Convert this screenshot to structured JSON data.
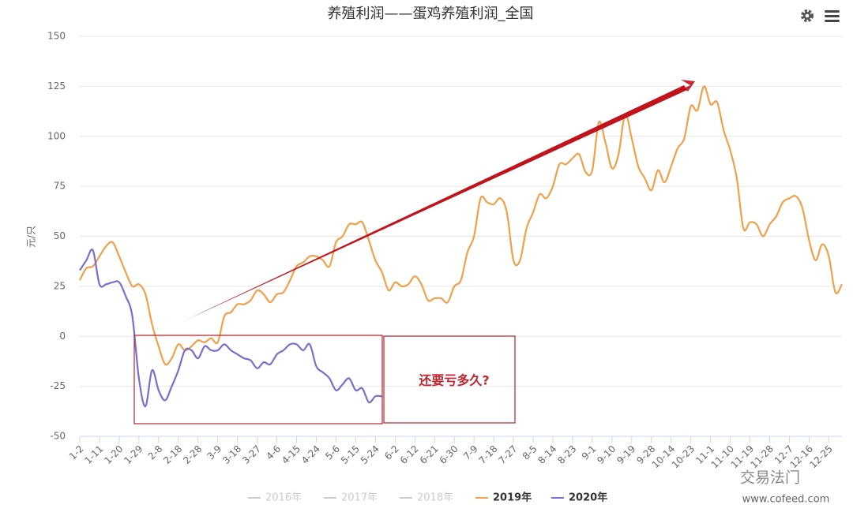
{
  "chart_data": {
    "type": "line",
    "title": "养殖利润——蛋鸡养殖利润_全国",
    "y_label": "元/只",
    "categories": [
      "1-2",
      null,
      null,
      "1-11",
      null,
      null,
      "1-20",
      null,
      null,
      "1-29",
      null,
      null,
      "2-8",
      null,
      null,
      "2-18",
      null,
      null,
      "2-28",
      null,
      null,
      "3-9",
      null,
      null,
      "3-18",
      null,
      null,
      "3-27",
      null,
      null,
      "4-6",
      null,
      null,
      "4-15",
      null,
      null,
      "4-24",
      null,
      null,
      "5-6",
      null,
      null,
      "5-15",
      null,
      null,
      "5-24",
      null,
      null,
      "6-2",
      null,
      null,
      "6-12",
      null,
      null,
      "6-21",
      null,
      null,
      "6-30",
      null,
      null,
      "7-9",
      null,
      null,
      "7-18",
      null,
      null,
      "7-27",
      null,
      null,
      "8-5",
      null,
      null,
      "8-14",
      null,
      null,
      "8-23",
      null,
      null,
      "9-1",
      null,
      null,
      "9-10",
      null,
      null,
      "9-19",
      null,
      null,
      "9-28",
      null,
      null,
      "10-14",
      null,
      null,
      "10-23",
      null,
      null,
      "11-1",
      null,
      null,
      "11-10",
      null,
      null,
      "11-19",
      null,
      null,
      "11-28",
      null,
      null,
      "12-7",
      null,
      null,
      "12-16",
      null,
      null,
      "12-25",
      null,
      null
    ],
    "series": [
      {
        "name": "2016年",
        "color": "#cccccc",
        "visible": false
      },
      {
        "name": "2017年",
        "color": "#cccccc",
        "visible": false
      },
      {
        "name": "2018年",
        "color": "#cccccc",
        "visible": false
      },
      {
        "name": "2019年",
        "color": "#f0a04b",
        "visible": true,
        "values": [
          28,
          34,
          35,
          40,
          45,
          47,
          40,
          32,
          25,
          26,
          21,
          6,
          -5,
          -14,
          -11,
          -4,
          -7,
          -5,
          -2,
          -3,
          -1,
          -3,
          10,
          12,
          16,
          16,
          18,
          23,
          21,
          17,
          21,
          22,
          28,
          35,
          37,
          40,
          40,
          38,
          35,
          47,
          50,
          56,
          56,
          57,
          48,
          38,
          32,
          23,
          27,
          25,
          26,
          30,
          26,
          18,
          19,
          19,
          17,
          25,
          28,
          42,
          50,
          69,
          67,
          66,
          69,
          62,
          38,
          38,
          54,
          62,
          71,
          69,
          75,
          86,
          86,
          89,
          91,
          82,
          83,
          107,
          97,
          84,
          91,
          111,
          99,
          85,
          79,
          73,
          83,
          77,
          85,
          94,
          99,
          115,
          113,
          125,
          116,
          117,
          103,
          93,
          79,
          54,
          57,
          56,
          50,
          56,
          60,
          67,
          69,
          70,
          64,
          48,
          38,
          46,
          40,
          22,
          26
        ]
      },
      {
        "name": "2020年",
        "color": "#7b6ccf",
        "visible": true,
        "values": [
          33,
          38,
          43,
          26,
          26,
          27,
          27,
          20,
          10,
          -21,
          -35,
          -17,
          -27,
          -32,
          -25,
          -17,
          -7,
          -7,
          -11,
          -5,
          -7,
          -7,
          -4,
          -7,
          -9,
          -11,
          -12,
          -16,
          -13,
          -14,
          -9,
          -7,
          -4,
          -4,
          -7,
          -4,
          -15,
          -18,
          -21,
          -27,
          -24,
          -21,
          -27,
          -26,
          -33,
          -30,
          -30,
          null,
          null,
          null,
          null,
          null,
          null,
          null,
          null,
          null,
          null,
          null,
          null,
          null,
          null,
          null,
          null,
          null,
          null,
          null,
          null,
          null,
          null,
          null,
          null,
          null,
          null,
          null,
          null,
          null,
          null,
          null,
          null,
          null,
          null,
          null,
          null,
          null,
          null,
          null,
          null,
          null,
          null,
          null,
          null,
          null,
          null,
          null,
          null,
          null,
          null,
          null,
          null,
          null,
          null,
          null,
          null,
          null,
          null,
          null,
          null,
          null,
          null,
          null,
          null,
          null,
          null,
          null,
          null,
          null,
          null
        ]
      }
    ],
    "ylim": [
      -50,
      150
    ],
    "yticks": [
      -50,
      -25,
      0,
      25,
      50,
      75,
      100,
      125,
      150
    ],
    "grid": true,
    "annotations": [
      {
        "text": "还要亏多久?",
        "color": "#c0262d"
      }
    ],
    "watermark": {
      "text": "交易法门",
      "url": "www.cofeed.com"
    }
  }
}
